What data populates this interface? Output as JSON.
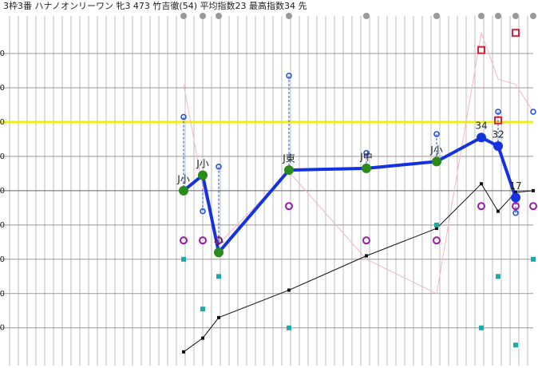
{
  "chart_data": {
    "type": "line",
    "title": "3枠3番 ハナノオンリーワン 牝3 473 竹吉徹(54) 平均指数23 最高指数34 先",
    "categories": [
      null,
      null,
      null,
      null,
      null,
      null,
      null,
      null,
      null,
      null
    ],
    "ylim": [
      -42,
      160
    ],
    "yticks": [
      -20,
      0,
      20,
      40,
      60,
      80,
      100,
      120,
      140
    ],
    "highlight_tick": 100,
    "highlight_color": "#f0f000",
    "grid": true,
    "series": [
      {
        "name": "pink",
        "color": "#f4b8c0",
        "values": [
          122,
          62,
          29,
          71,
          20,
          0,
          152,
          125,
          122,
          106
        ]
      },
      {
        "name": "black",
        "color": "#111111",
        "values": [
          -34,
          -26,
          -14,
          2,
          22,
          38,
          64,
          48,
          59,
          60
        ]
      },
      {
        "name": "index",
        "color": "#1432e0",
        "values": [
          60,
          69,
          24,
          72,
          73,
          77,
          91,
          86,
          56,
          null
        ],
        "point_labels": [
          "J小",
          "J小",
          "小",
          "J東",
          "J中",
          "J小",
          "34",
          "32",
          "17",
          null
        ]
      },
      {
        "name": "teal",
        "color": "#20a8a8",
        "values": [
          20,
          -9,
          10,
          -20,
          null,
          40,
          -20,
          10,
          -30,
          20
        ]
      },
      {
        "name": "purple",
        "color": "#9a1aa8",
        "values": [
          31,
          31,
          31,
          51,
          31,
          31,
          51,
          null,
          51,
          51
        ]
      },
      {
        "name": "blue",
        "color": "#1a4ae0",
        "values": [
          103,
          48,
          74,
          127,
          82,
          93,
          null,
          106,
          47,
          106
        ]
      },
      {
        "name": "red",
        "color": "#d8203a",
        "values": [
          null,
          null,
          null,
          null,
          null,
          null,
          142,
          101,
          152,
          null
        ]
      }
    ]
  }
}
